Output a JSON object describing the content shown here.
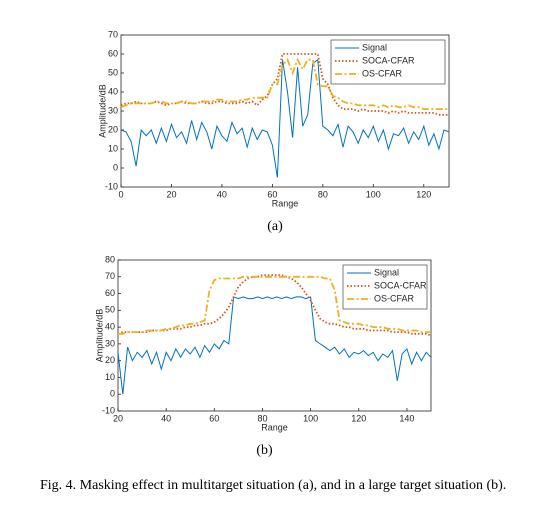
{
  "chart_data": [
    {
      "type": "line",
      "subcaption": "(a)",
      "xlabel": "Range",
      "ylabel": "Amplitude/dB",
      "xlim": [
        0,
        130
      ],
      "xticks": [
        0,
        20,
        40,
        60,
        80,
        100,
        120
      ],
      "ylim": [
        -10,
        70
      ],
      "yticks": [
        -10,
        0,
        10,
        20,
        30,
        40,
        50,
        60,
        70
      ],
      "legend": "upper right",
      "x": [
        0,
        2,
        4,
        6,
        8,
        10,
        12,
        14,
        16,
        18,
        20,
        22,
        24,
        26,
        28,
        30,
        32,
        34,
        36,
        38,
        40,
        42,
        44,
        46,
        48,
        50,
        52,
        54,
        56,
        58,
        60,
        62,
        64,
        66,
        68,
        70,
        72,
        74,
        76,
        78,
        80,
        82,
        84,
        86,
        88,
        90,
        92,
        94,
        96,
        98,
        100,
        102,
        104,
        106,
        108,
        110,
        112,
        114,
        116,
        118,
        120,
        122,
        124,
        126,
        128,
        130
      ],
      "series": [
        {
          "name": "Signal",
          "color": "#0072bd",
          "style": "solid",
          "values": [
            20,
            19,
            14,
            1,
            20,
            17,
            20,
            13,
            21,
            14,
            23,
            16,
            19,
            13,
            25,
            15,
            24,
            19,
            10,
            22,
            17,
            14,
            24,
            18,
            21,
            11,
            21,
            15,
            20,
            19,
            12,
            -5,
            57,
            40,
            16,
            53,
            22,
            28,
            55,
            57,
            22,
            20,
            17,
            23,
            11,
            22,
            19,
            13,
            20,
            16,
            22,
            14,
            20,
            10,
            18,
            17,
            21,
            13,
            19,
            15,
            22,
            12,
            18,
            10,
            20,
            19
          ]
        },
        {
          "name": "SOCA-CFAR",
          "color": "#d95319",
          "style": "dotted",
          "values": [
            33,
            34,
            34,
            35,
            34,
            34,
            34,
            35,
            34,
            33,
            34,
            34,
            35,
            34,
            34,
            34,
            35,
            34,
            34,
            35,
            35,
            34,
            34,
            34,
            35,
            34,
            35,
            33,
            36,
            38,
            44,
            47,
            60,
            60,
            60,
            60,
            60,
            60,
            60,
            60,
            47,
            44,
            37,
            33,
            31,
            31,
            31,
            30,
            31,
            30,
            30,
            30,
            30,
            29,
            30,
            29,
            30,
            29,
            29,
            29,
            29,
            29,
            29,
            28,
            28,
            28
          ]
        },
        {
          "name": "OS-CFAR",
          "color": "#edb120",
          "style": "dashdot",
          "values": [
            32,
            33,
            34,
            34,
            34,
            34,
            34,
            35,
            35,
            34,
            34,
            34,
            35,
            35,
            34,
            34,
            35,
            35,
            35,
            36,
            36,
            35,
            35,
            35,
            36,
            36,
            37,
            37,
            37,
            37,
            44,
            44,
            54,
            57,
            50,
            57,
            52,
            57,
            57,
            44,
            43,
            43,
            38,
            37,
            35,
            34,
            34,
            33,
            33,
            33,
            33,
            32,
            33,
            32,
            33,
            32,
            32,
            33,
            32,
            32,
            31,
            31,
            31,
            31,
            31,
            31
          ]
        }
      ]
    },
    {
      "type": "line",
      "subcaption": "(b)",
      "xlabel": "Range",
      "ylabel": "Amplitude/dB",
      "xlim": [
        20,
        150
      ],
      "xticks": [
        20,
        40,
        60,
        80,
        100,
        120,
        140
      ],
      "ylim": [
        -10,
        80
      ],
      "yticks": [
        -10,
        0,
        10,
        20,
        30,
        40,
        50,
        60,
        70,
        80
      ],
      "legend": "upper right",
      "x": [
        20,
        22,
        24,
        26,
        28,
        30,
        32,
        34,
        36,
        38,
        40,
        42,
        44,
        46,
        48,
        50,
        52,
        54,
        56,
        58,
        60,
        62,
        64,
        66,
        68,
        70,
        72,
        74,
        76,
        78,
        80,
        82,
        84,
        86,
        88,
        90,
        92,
        94,
        96,
        98,
        100,
        102,
        104,
        106,
        108,
        110,
        112,
        114,
        116,
        118,
        120,
        122,
        124,
        126,
        128,
        130,
        132,
        134,
        136,
        138,
        140,
        142,
        144,
        146,
        148,
        150
      ],
      "series": [
        {
          "name": "Signal",
          "color": "#0072bd",
          "style": "solid",
          "values": [
            25,
            0,
            28,
            20,
            25,
            22,
            26,
            18,
            25,
            15,
            25,
            20,
            27,
            22,
            27,
            24,
            28,
            22,
            29,
            25,
            30,
            27,
            32,
            30,
            58,
            57,
            58,
            57,
            57,
            58,
            57,
            58,
            57,
            58,
            57,
            58,
            57,
            58,
            58,
            57,
            58,
            32,
            30,
            28,
            26,
            28,
            24,
            27,
            22,
            25,
            24,
            26,
            23,
            25,
            20,
            24,
            22,
            26,
            8,
            24,
            27,
            18,
            25,
            20,
            25,
            22
          ]
        },
        {
          "name": "SOCA-CFAR",
          "color": "#d95319",
          "style": "dotted",
          "values": [
            36,
            37,
            37,
            37,
            37,
            37,
            37,
            38,
            38,
            38,
            38,
            39,
            39,
            39,
            40,
            40,
            41,
            41,
            42,
            42,
            43,
            45,
            48,
            52,
            58,
            64,
            67,
            69,
            70,
            70,
            71,
            71,
            71,
            71,
            71,
            70,
            69,
            67,
            64,
            60,
            56,
            50,
            45,
            43,
            42,
            42,
            41,
            40,
            40,
            39,
            39,
            39,
            38,
            38,
            38,
            38,
            38,
            37,
            37,
            37,
            37,
            36,
            36,
            36,
            36,
            35
          ]
        },
        {
          "name": "OS-CFAR",
          "color": "#edb120",
          "style": "dashdot",
          "values": [
            36,
            36,
            37,
            37,
            37,
            37,
            38,
            38,
            38,
            38,
            39,
            39,
            40,
            41,
            41,
            42,
            42,
            43,
            44,
            62,
            68,
            69,
            69,
            69,
            69,
            69,
            70,
            70,
            70,
            70,
            70,
            70,
            70,
            70,
            70,
            70,
            70,
            70,
            70,
            70,
            70,
            70,
            70,
            69,
            69,
            62,
            44,
            43,
            42,
            42,
            42,
            41,
            41,
            40,
            40,
            40,
            39,
            39,
            39,
            38,
            38,
            38,
            38,
            37,
            37,
            37
          ]
        }
      ]
    }
  ],
  "caption": "Fig. 4.  Masking effect in multitarget situation (a), and in a large target situation (b)."
}
